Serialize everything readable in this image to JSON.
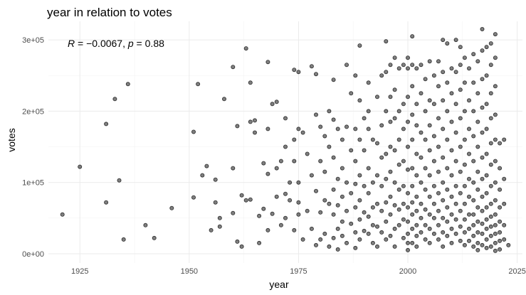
{
  "chart_data": {
    "type": "scatter",
    "title": "year in relation to votes",
    "xlabel": "year",
    "ylabel": "votes",
    "xlim": [
      1917.8,
      2026.2
    ],
    "ylim": [
      -13000,
      326000
    ],
    "x_ticks": [
      1925,
      1950,
      1975,
      2000,
      2025
    ],
    "x_tick_labels": [
      "1925",
      "1950",
      "1975",
      "2000",
      "2025"
    ],
    "y_ticks": [
      0,
      100000,
      200000,
      300000
    ],
    "y_tick_labels": [
      "0e+00",
      "1e+05",
      "2e+05",
      "3e+05"
    ],
    "grid": true,
    "annotation": {
      "r_label": "R",
      "r_value": "−0.0067",
      "p_label": "p",
      "p_value": "0.88"
    },
    "points": [
      [
        1921,
        55000
      ],
      [
        1925,
        122000
      ],
      [
        1931,
        182000
      ],
      [
        1931,
        72000
      ],
      [
        1933,
        217000
      ],
      [
        1934,
        103000
      ],
      [
        1935,
        20000
      ],
      [
        1936,
        238000
      ],
      [
        1940,
        40000
      ],
      [
        1942,
        22000
      ],
      [
        1946,
        64000
      ],
      [
        1951,
        171000
      ],
      [
        1951,
        79000
      ],
      [
        1952,
        238000
      ],
      [
        1953,
        110000
      ],
      [
        1954,
        123000
      ],
      [
        1955,
        33000
      ],
      [
        1956,
        104000
      ],
      [
        1956,
        72000
      ],
      [
        1957,
        50000
      ],
      [
        1957,
        38000
      ],
      [
        1958,
        217000
      ],
      [
        1960,
        262000
      ],
      [
        1960,
        120000
      ],
      [
        1960,
        57000
      ],
      [
        1961,
        179000
      ],
      [
        1961,
        17000
      ],
      [
        1962,
        82000
      ],
      [
        1962,
        10000
      ],
      [
        1963,
        288000
      ],
      [
        1963,
        75000
      ],
      [
        1964,
        240000
      ],
      [
        1964,
        185000
      ],
      [
        1964,
        76000
      ],
      [
        1965,
        187000
      ],
      [
        1965,
        170000
      ],
      [
        1966,
        53000
      ],
      [
        1966,
        15000
      ],
      [
        1967,
        127000
      ],
      [
        1967,
        63000
      ],
      [
        1968,
        269000
      ],
      [
        1968,
        175000
      ],
      [
        1968,
        112000
      ],
      [
        1968,
        33000
      ],
      [
        1969,
        210000
      ],
      [
        1969,
        56000
      ],
      [
        1970,
        213000
      ],
      [
        1970,
        120000
      ],
      [
        1970,
        80000
      ],
      [
        1971,
        130000
      ],
      [
        1971,
        40000
      ],
      [
        1972,
        190000
      ],
      [
        1972,
        150000
      ],
      [
        1972,
        84000
      ],
      [
        1972,
        50000
      ],
      [
        1973,
        100000
      ],
      [
        1973,
        75000
      ],
      [
        1974,
        258000
      ],
      [
        1974,
        160000
      ],
      [
        1974,
        130000
      ],
      [
        1974,
        33000
      ],
      [
        1975,
        255000
      ],
      [
        1975,
        175000
      ],
      [
        1975,
        100000
      ],
      [
        1975,
        72000
      ],
      [
        1975,
        55000
      ],
      [
        1976,
        170000
      ],
      [
        1976,
        20000
      ],
      [
        1977,
        140000
      ],
      [
        1977,
        60000
      ],
      [
        1978,
        263000
      ],
      [
        1978,
        110000
      ],
      [
        1978,
        35000
      ],
      [
        1979,
        252000
      ],
      [
        1979,
        195000
      ],
      [
        1979,
        88000
      ],
      [
        1979,
        12000
      ],
      [
        1980,
        178000
      ],
      [
        1980,
        130000
      ],
      [
        1980,
        58000
      ],
      [
        1980,
        20000
      ],
      [
        1981,
        165000
      ],
      [
        1981,
        115000
      ],
      [
        1981,
        75000
      ],
      [
        1981,
        28000
      ],
      [
        1982,
        200000
      ],
      [
        1982,
        150000
      ],
      [
        1982,
        70000
      ],
      [
        1982,
        10000
      ],
      [
        1983,
        244000
      ],
      [
        1983,
        188000
      ],
      [
        1983,
        135000
      ],
      [
        1983,
        90000
      ],
      [
        1983,
        55000
      ],
      [
        1983,
        22000
      ],
      [
        1984,
        175000
      ],
      [
        1984,
        105000
      ],
      [
        1984,
        68000
      ],
      [
        1984,
        35000
      ],
      [
        1984,
        6000
      ],
      [
        1985,
        160000
      ],
      [
        1985,
        120000
      ],
      [
        1985,
        80000
      ],
      [
        1985,
        45000
      ],
      [
        1985,
        25000
      ],
      [
        1986,
        265000
      ],
      [
        1986,
        178000
      ],
      [
        1986,
        100000
      ],
      [
        1986,
        60000
      ],
      [
        1986,
        15000
      ],
      [
        1987,
        225000
      ],
      [
        1987,
        145000
      ],
      [
        1987,
        85000
      ],
      [
        1987,
        42000
      ],
      [
        1988,
        250000
      ],
      [
        1988,
        175000
      ],
      [
        1988,
        130000
      ],
      [
        1988,
        98000
      ],
      [
        1988,
        65000
      ],
      [
        1988,
        30000
      ],
      [
        1988,
        8000
      ],
      [
        1989,
        292000
      ],
      [
        1989,
        215000
      ],
      [
        1989,
        160000
      ],
      [
        1989,
        110000
      ],
      [
        1989,
        75000
      ],
      [
        1989,
        48000
      ],
      [
        1989,
        20000
      ],
      [
        1990,
        190000
      ],
      [
        1990,
        145000
      ],
      [
        1990,
        95000
      ],
      [
        1990,
        58000
      ],
      [
        1990,
        32000
      ],
      [
        1991,
        240000
      ],
      [
        1991,
        200000
      ],
      [
        1991,
        175000
      ],
      [
        1991,
        120000
      ],
      [
        1991,
        85000
      ],
      [
        1991,
        52000
      ],
      [
        1991,
        28000
      ],
      [
        1992,
        160000
      ],
      [
        1992,
        100000
      ],
      [
        1992,
        65000
      ],
      [
        1992,
        40000
      ],
      [
        1992,
        15000
      ],
      [
        1993,
        220000
      ],
      [
        1993,
        155000
      ],
      [
        1993,
        110000
      ],
      [
        1993,
        70000
      ],
      [
        1993,
        38000
      ],
      [
        1993,
        10000
      ],
      [
        1994,
        250000
      ],
      [
        1994,
        180000
      ],
      [
        1994,
        135000
      ],
      [
        1994,
        95000
      ],
      [
        1994,
        60000
      ],
      [
        1994,
        30000
      ],
      [
        1995,
        298000
      ],
      [
        1995,
        255000
      ],
      [
        1995,
        200000
      ],
      [
        1995,
        140000
      ],
      [
        1995,
        105000
      ],
      [
        1995,
        72000
      ],
      [
        1995,
        45000
      ],
      [
        1995,
        20000
      ],
      [
        1996,
        265000
      ],
      [
        1996,
        220000
      ],
      [
        1996,
        185000
      ],
      [
        1996,
        150000
      ],
      [
        1996,
        115000
      ],
      [
        1996,
        80000
      ],
      [
        1996,
        55000
      ],
      [
        1996,
        25000
      ],
      [
        1997,
        275000
      ],
      [
        1997,
        230000
      ],
      [
        1997,
        190000
      ],
      [
        1997,
        145000
      ],
      [
        1997,
        100000
      ],
      [
        1997,
        68000
      ],
      [
        1997,
        35000
      ],
      [
        1997,
        10000
      ],
      [
        1998,
        260000
      ],
      [
        1998,
        200000
      ],
      [
        1998,
        160000
      ],
      [
        1998,
        125000
      ],
      [
        1998,
        90000
      ],
      [
        1998,
        62000
      ],
      [
        1998,
        40000
      ],
      [
        1999,
        265000
      ],
      [
        1999,
        210000
      ],
      [
        1999,
        175000
      ],
      [
        1999,
        130000
      ],
      [
        1999,
        95000
      ],
      [
        1999,
        70000
      ],
      [
        1999,
        48000
      ],
      [
        1999,
        22000
      ],
      [
        2000,
        275000
      ],
      [
        2000,
        260000
      ],
      [
        2000,
        220000
      ],
      [
        2000,
        185000
      ],
      [
        2000,
        150000
      ],
      [
        2000,
        118000
      ],
      [
        2000,
        85000
      ],
      [
        2000,
        65000
      ],
      [
        2000,
        45000
      ],
      [
        2000,
        28000
      ],
      [
        2000,
        15000
      ],
      [
        2000,
        5000
      ],
      [
        2001,
        305000
      ],
      [
        2001,
        265000
      ],
      [
        2001,
        235000
      ],
      [
        2001,
        195000
      ],
      [
        2001,
        160000
      ],
      [
        2001,
        120000
      ],
      [
        2001,
        95000
      ],
      [
        2001,
        72000
      ],
      [
        2001,
        55000
      ],
      [
        2001,
        35000
      ],
      [
        2001,
        15000
      ],
      [
        2002,
        260000
      ],
      [
        2002,
        210000
      ],
      [
        2002,
        180000
      ],
      [
        2002,
        140000
      ],
      [
        2002,
        110000
      ],
      [
        2002,
        80000
      ],
      [
        2002,
        60000
      ],
      [
        2002,
        40000
      ],
      [
        2002,
        25000
      ],
      [
        2002,
        10000
      ],
      [
        2003,
        265000
      ],
      [
        2003,
        225000
      ],
      [
        2003,
        170000
      ],
      [
        2003,
        135000
      ],
      [
        2003,
        100000
      ],
      [
        2003,
        70000
      ],
      [
        2003,
        50000
      ],
      [
        2003,
        30000
      ],
      [
        2004,
        245000
      ],
      [
        2004,
        200000
      ],
      [
        2004,
        160000
      ],
      [
        2004,
        120000
      ],
      [
        2004,
        90000
      ],
      [
        2004,
        62000
      ],
      [
        2004,
        40000
      ],
      [
        2004,
        20000
      ],
      [
        2005,
        270000
      ],
      [
        2005,
        215000
      ],
      [
        2005,
        180000
      ],
      [
        2005,
        145000
      ],
      [
        2005,
        110000
      ],
      [
        2005,
        80000
      ],
      [
        2005,
        55000
      ],
      [
        2005,
        35000
      ],
      [
        2005,
        15000
      ],
      [
        2006,
        250000
      ],
      [
        2006,
        210000
      ],
      [
        2006,
        165000
      ],
      [
        2006,
        130000
      ],
      [
        2006,
        95000
      ],
      [
        2006,
        70000
      ],
      [
        2006,
        50000
      ],
      [
        2006,
        28000
      ],
      [
        2007,
        270000
      ],
      [
        2007,
        235000
      ],
      [
        2007,
        190000
      ],
      [
        2007,
        150000
      ],
      [
        2007,
        115000
      ],
      [
        2007,
        85000
      ],
      [
        2007,
        60000
      ],
      [
        2007,
        40000
      ],
      [
        2007,
        20000
      ],
      [
        2008,
        300000
      ],
      [
        2008,
        255000
      ],
      [
        2008,
        215000
      ],
      [
        2008,
        175000
      ],
      [
        2008,
        135000
      ],
      [
        2008,
        100000
      ],
      [
        2008,
        75000
      ],
      [
        2008,
        50000
      ],
      [
        2008,
        30000
      ],
      [
        2008,
        10000
      ],
      [
        2009,
        295000
      ],
      [
        2009,
        240000
      ],
      [
        2009,
        200000
      ],
      [
        2009,
        160000
      ],
      [
        2009,
        120000
      ],
      [
        2009,
        90000
      ],
      [
        2009,
        65000
      ],
      [
        2009,
        45000
      ],
      [
        2009,
        25000
      ],
      [
        2010,
        260000
      ],
      [
        2010,
        225000
      ],
      [
        2010,
        185000
      ],
      [
        2010,
        145000
      ],
      [
        2010,
        110000
      ],
      [
        2010,
        80000
      ],
      [
        2010,
        55000
      ],
      [
        2010,
        35000
      ],
      [
        2010,
        15000
      ],
      [
        2011,
        300000
      ],
      [
        2011,
        255000
      ],
      [
        2011,
        210000
      ],
      [
        2011,
        170000
      ],
      [
        2011,
        130000
      ],
      [
        2011,
        95000
      ],
      [
        2011,
        70000
      ],
      [
        2011,
        48000
      ],
      [
        2011,
        28000
      ],
      [
        2012,
        290000
      ],
      [
        2012,
        265000
      ],
      [
        2012,
        230000
      ],
      [
        2012,
        190000
      ],
      [
        2012,
        150000
      ],
      [
        2012,
        115000
      ],
      [
        2012,
        85000
      ],
      [
        2012,
        60000
      ],
      [
        2012,
        38000
      ],
      [
        2012,
        18000
      ],
      [
        2013,
        275000
      ],
      [
        2013,
        240000
      ],
      [
        2013,
        200000
      ],
      [
        2013,
        160000
      ],
      [
        2013,
        125000
      ],
      [
        2013,
        95000
      ],
      [
        2013,
        70000
      ],
      [
        2013,
        48000
      ],
      [
        2013,
        30000
      ],
      [
        2013,
        12000
      ],
      [
        2014,
        260000
      ],
      [
        2014,
        215000
      ],
      [
        2014,
        175000
      ],
      [
        2014,
        140000
      ],
      [
        2014,
        105000
      ],
      [
        2014,
        80000
      ],
      [
        2014,
        55000
      ],
      [
        2014,
        35000
      ],
      [
        2014,
        18000
      ],
      [
        2015,
        280000
      ],
      [
        2015,
        240000
      ],
      [
        2015,
        200000
      ],
      [
        2015,
        165000
      ],
      [
        2015,
        130000
      ],
      [
        2015,
        100000
      ],
      [
        2015,
        75000
      ],
      [
        2015,
        55000
      ],
      [
        2015,
        40000
      ],
      [
        2015,
        25000
      ],
      [
        2015,
        10000
      ],
      [
        2016,
        270000
      ],
      [
        2016,
        225000
      ],
      [
        2016,
        185000
      ],
      [
        2016,
        150000
      ],
      [
        2016,
        115000
      ],
      [
        2016,
        90000
      ],
      [
        2016,
        65000
      ],
      [
        2016,
        45000
      ],
      [
        2016,
        30000
      ],
      [
        2016,
        15000
      ],
      [
        2016,
        5000
      ],
      [
        2017,
        315000
      ],
      [
        2017,
        285000
      ],
      [
        2017,
        245000
      ],
      [
        2017,
        205000
      ],
      [
        2017,
        170000
      ],
      [
        2017,
        135000
      ],
      [
        2017,
        105000
      ],
      [
        2017,
        80000
      ],
      [
        2017,
        60000
      ],
      [
        2017,
        42000
      ],
      [
        2017,
        28000
      ],
      [
        2017,
        12000
      ],
      [
        2018,
        290000
      ],
      [
        2018,
        250000
      ],
      [
        2018,
        210000
      ],
      [
        2018,
        175000
      ],
      [
        2018,
        140000
      ],
      [
        2018,
        110000
      ],
      [
        2018,
        85000
      ],
      [
        2018,
        65000
      ],
      [
        2018,
        48000
      ],
      [
        2018,
        35000
      ],
      [
        2018,
        20000
      ],
      [
        2018,
        8000
      ],
      [
        2019,
        295000
      ],
      [
        2019,
        265000
      ],
      [
        2019,
        225000
      ],
      [
        2019,
        190000
      ],
      [
        2019,
        155000
      ],
      [
        2019,
        125000
      ],
      [
        2019,
        95000
      ],
      [
        2019,
        70000
      ],
      [
        2019,
        52000
      ],
      [
        2019,
        38000
      ],
      [
        2019,
        25000
      ],
      [
        2019,
        10000
      ],
      [
        2020,
        308000
      ],
      [
        2020,
        275000
      ],
      [
        2020,
        235000
      ],
      [
        2020,
        195000
      ],
      [
        2020,
        160000
      ],
      [
        2020,
        130000
      ],
      [
        2020,
        100000
      ],
      [
        2020,
        75000
      ],
      [
        2020,
        55000
      ],
      [
        2020,
        40000
      ],
      [
        2020,
        28000
      ],
      [
        2020,
        15000
      ],
      [
        2020,
        4000
      ],
      [
        2021,
        155000
      ],
      [
        2021,
        120000
      ],
      [
        2021,
        90000
      ],
      [
        2021,
        65000
      ],
      [
        2021,
        45000
      ],
      [
        2021,
        30000
      ],
      [
        2021,
        18000
      ],
      [
        2021,
        6000
      ],
      [
        2022,
        160000
      ],
      [
        2022,
        105000
      ],
      [
        2022,
        70000
      ],
      [
        2022,
        40000
      ],
      [
        2022,
        20000
      ],
      [
        2023,
        12000
      ]
    ]
  }
}
